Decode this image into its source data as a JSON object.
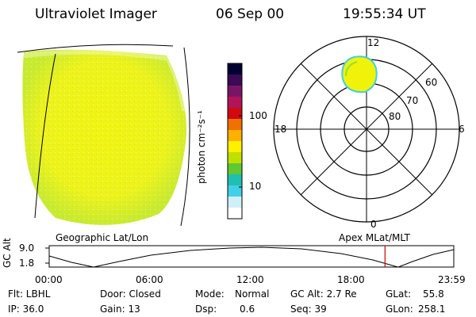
{
  "header": {
    "instrument": "Ultraviolet Imager",
    "date": "06 Sep 00",
    "time": "19:55:34 UT"
  },
  "colorbar": {
    "unit_label": "photon cm⁻²s⁻¹",
    "ticks": [
      "100",
      "10"
    ],
    "colors": [
      "#000033",
      "#3a0a55",
      "#7a1565",
      "#b0155a",
      "#d00a10",
      "#f07000",
      "#ffb000",
      "#fff000",
      "#c0e000",
      "#60c830",
      "#20c0b0",
      "#40d0e8",
      "#d0f0f8",
      "#ffffff"
    ]
  },
  "polar_plot": {
    "mlt_labels": {
      "top": "12",
      "left": "18",
      "right": "6",
      "bottom": "0"
    },
    "lat_labels": [
      "60",
      "70",
      "80"
    ]
  },
  "timeline": {
    "left_label": "Geographic Lat/Lon",
    "right_label": "Apex  MLat/MLT",
    "y_axis_title": "GC Alt",
    "y_ticks": [
      "9.0",
      "1.8"
    ],
    "time_ticks": [
      "00:00",
      "06:00",
      "12:00",
      "18:00",
      "23:59"
    ],
    "current_time_fraction": 0.83
  },
  "info": {
    "col1": [
      "Flt: LBHL",
      "IP: 36.0"
    ],
    "col2": [
      "Door: Closed",
      "Gain: 13"
    ],
    "col3_label": [
      "Mode:",
      "Dsp:"
    ],
    "col3_value": [
      "Normal",
      "0.6"
    ],
    "col4": [
      "GC Alt: 2.7 Re",
      "Seq: 39"
    ],
    "col5_label": [
      "GLat:",
      "GLon:"
    ],
    "col5_value": [
      "55.8",
      "258.1"
    ]
  }
}
